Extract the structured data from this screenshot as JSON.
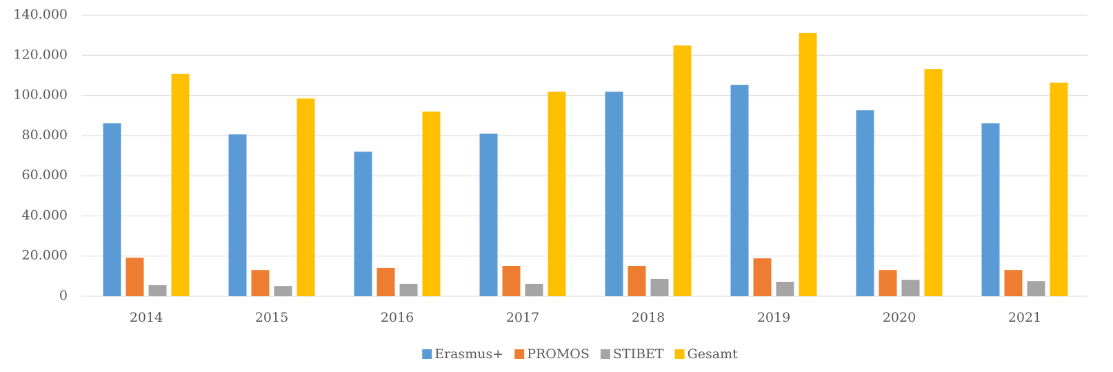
{
  "chart_data": {
    "type": "bar",
    "categories": [
      "2014",
      "2015",
      "2016",
      "2017",
      "2018",
      "2019",
      "2020",
      "2021"
    ],
    "series": [
      {
        "name": "Erasmus+",
        "color": "#5b9bd5",
        "values": [
          86100,
          80600,
          72000,
          81000,
          101900,
          105300,
          92600,
          86100
        ]
      },
      {
        "name": "PROMOS",
        "color": "#ed7d31",
        "values": [
          19200,
          13000,
          14100,
          15100,
          15100,
          18900,
          13000,
          13000
        ]
      },
      {
        "name": "STIBET",
        "color": "#a5a5a5",
        "values": [
          5500,
          5100,
          6200,
          6200,
          8600,
          7200,
          8200,
          7500
        ]
      },
      {
        "name": "Gesamt",
        "color": "#ffc000",
        "values": [
          110800,
          98500,
          92000,
          101900,
          124900,
          131100,
          113200,
          106400
        ]
      }
    ],
    "ylim": [
      0,
      140000
    ],
    "yticks": [
      0,
      {
        "value": 20000,
        "label": "20.000"
      },
      {
        "value": 40000,
        "label": "40.000"
      },
      {
        "value": 60000,
        "label": "60.000"
      },
      {
        "value": 80000,
        "label": "80.000"
      },
      {
        "value": 100000,
        "label": "100.000"
      },
      {
        "value": 120000,
        "label": "120.000"
      },
      {
        "value": 140000,
        "label": "140.000"
      }
    ],
    "grid": true,
    "legend": "bottom"
  }
}
